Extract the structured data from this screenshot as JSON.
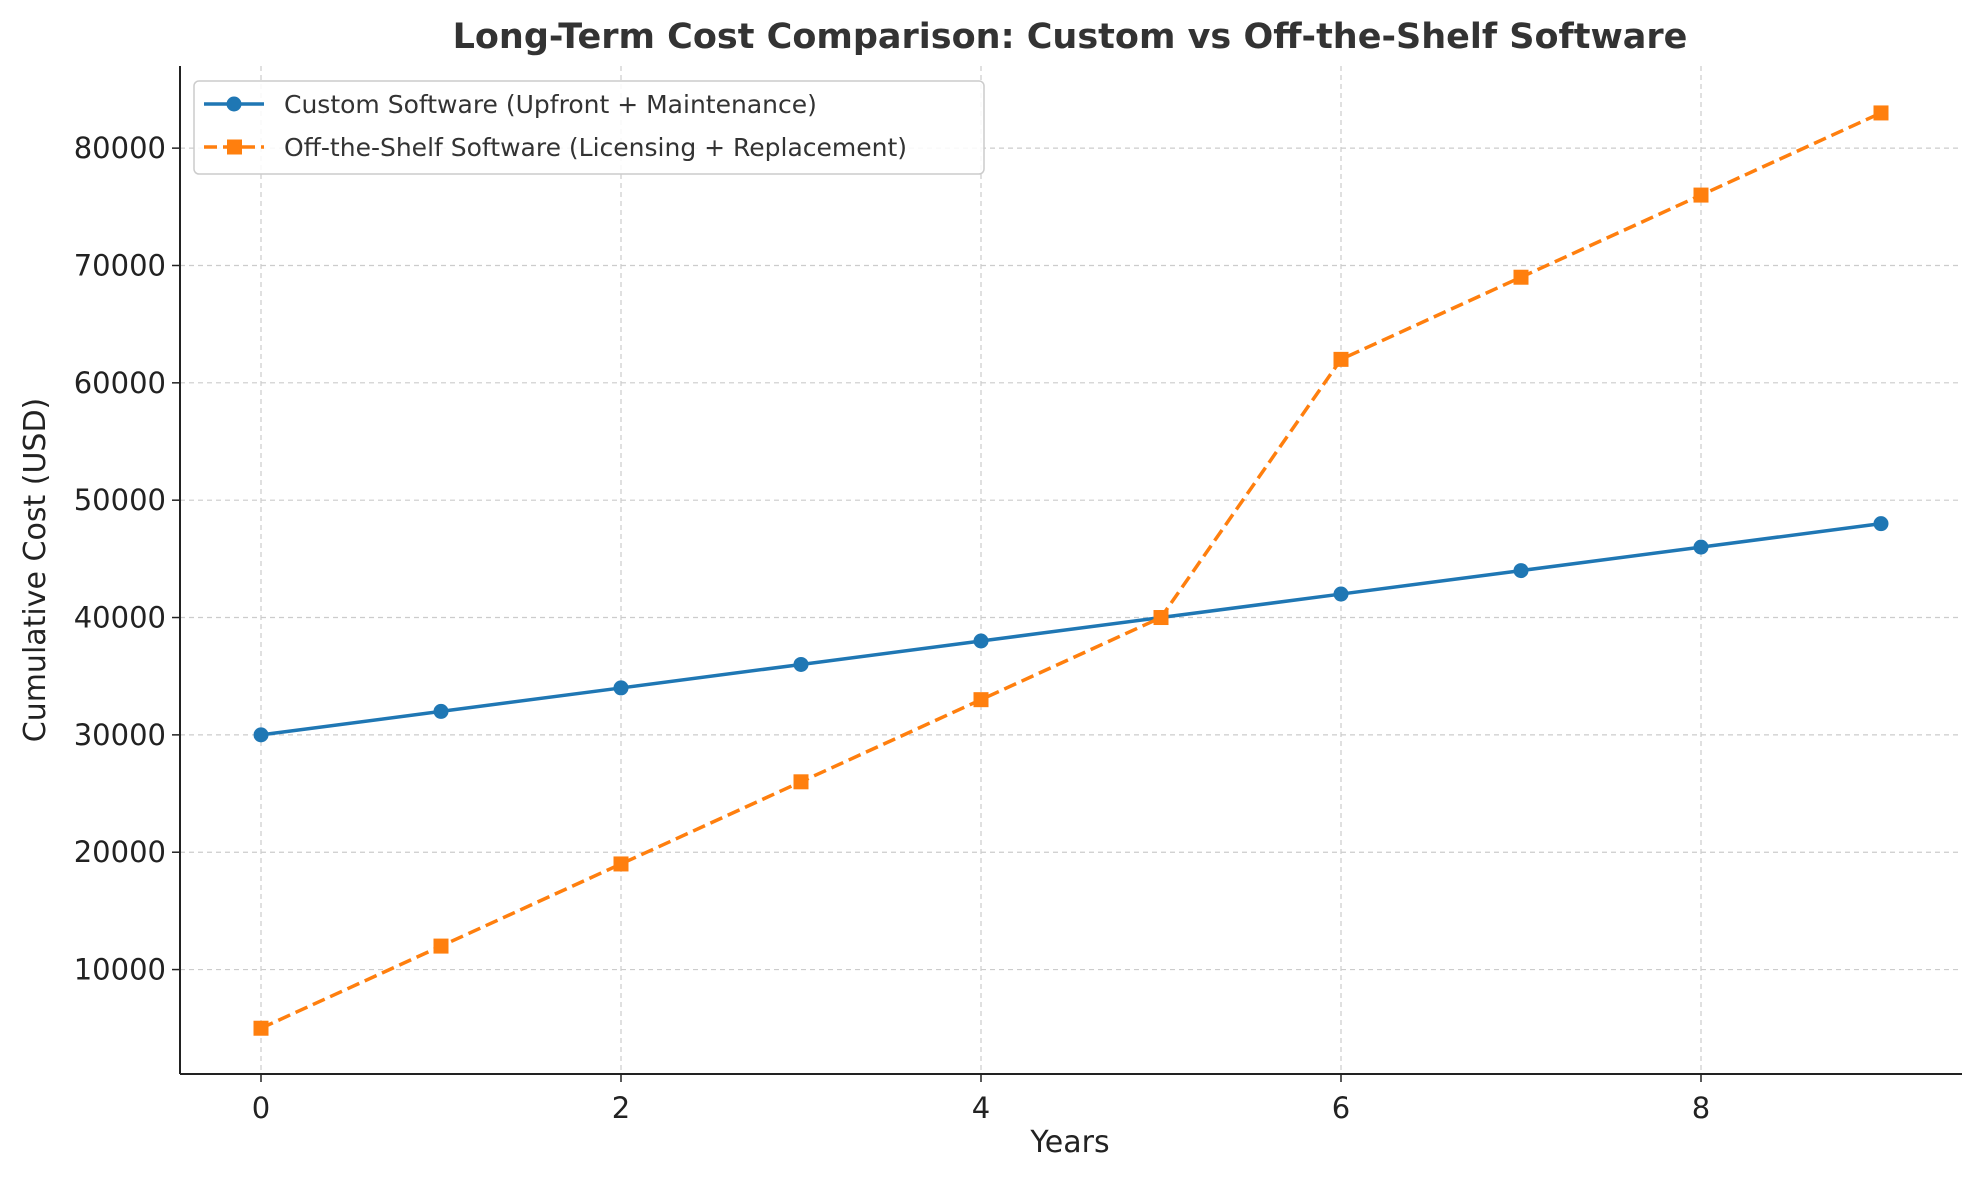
{
  "chart_data": {
    "type": "line",
    "title": "Long-Term Cost Comparison: Custom vs Off-the-Shelf Software",
    "xlabel": "Years",
    "ylabel": "Cumulative Cost (USD)",
    "x": [
      0,
      1,
      2,
      3,
      4,
      5,
      6,
      7,
      8,
      9
    ],
    "xlim": [
      -0.45,
      9.45
    ],
    "ylim": [
      1100,
      87000
    ],
    "xticks": [
      "0",
      "2",
      "4",
      "6",
      "8"
    ],
    "yticks": [
      "10000",
      "20000",
      "30000",
      "40000",
      "50000",
      "60000",
      "70000",
      "80000"
    ],
    "grid": true,
    "legend_position": "top-left",
    "series": [
      {
        "name": "Custom Software (Upfront + Maintenance)",
        "values": [
          30000,
          32000,
          34000,
          36000,
          38000,
          40000,
          42000,
          44000,
          46000,
          48000
        ],
        "color": "#1f77b4",
        "marker": "circle",
        "line_style": "solid"
      },
      {
        "name": "Off-the-Shelf Software (Licensing + Replacement)",
        "values": [
          5000,
          12000,
          19000,
          26000,
          33000,
          40000,
          62000,
          69000,
          76000,
          83000
        ],
        "color": "#ff7f0e",
        "marker": "square",
        "line_style": "dashed"
      }
    ]
  }
}
